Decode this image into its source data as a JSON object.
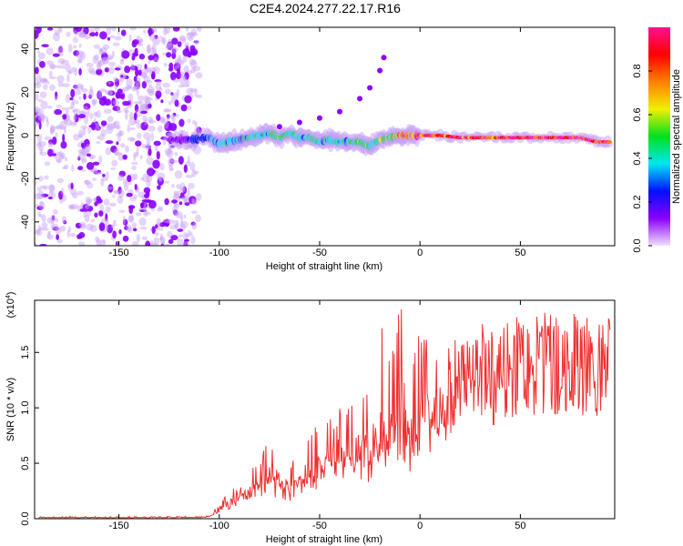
{
  "title": "C2E4.2024.277.22.17.R16",
  "chart_data": [
    {
      "type": "heatmap",
      "xlabel": "Height of straight line (km)",
      "ylabel": "Frequency (Hz)",
      "xlim": [
        -192,
        97
      ],
      "ylim": [
        -51,
        50
      ],
      "xticks": [
        -150,
        -100,
        -50,
        0,
        50
      ],
      "yticks": [
        40,
        20,
        0,
        -20,
        -40
      ],
      "colorbar": {
        "label": "Normalized spectral amplitude",
        "range": [
          0,
          1
        ],
        "ticks": [
          "0.0",
          "0.2",
          "0.4",
          "0.6",
          "0.8"
        ],
        "colors": [
          "#f0e0ff",
          "#8a00ff",
          "#0010ff",
          "#00e8f0",
          "#00e020",
          "#f0f000",
          "#ff8000",
          "#ff0000",
          "#ff1090"
        ]
      },
      "noise_region_x": [
        -192,
        -110
      ],
      "trace": {
        "x": [
          -125,
          -115,
          -105,
          -100,
          -95,
          -90,
          -85,
          -80,
          -75,
          -70,
          -65,
          -60,
          -55,
          -50,
          -45,
          -40,
          -35,
          -30,
          -25,
          -20,
          -15,
          -10,
          -5,
          0,
          10,
          20,
          30,
          40,
          50,
          60,
          70,
          80,
          88,
          95
        ],
        "freq": [
          -2,
          -2,
          -1,
          -4,
          -3,
          -2,
          -1,
          0,
          1,
          -1,
          1,
          -1,
          -1,
          -3,
          -2,
          -3,
          -3,
          -3,
          -5,
          -2,
          -1,
          0,
          0,
          0,
          0,
          -1,
          -1,
          -1,
          -1,
          -1,
          -1,
          -1,
          -3,
          -3
        ],
        "amplitude": [
          0.15,
          0.2,
          0.35,
          0.4,
          0.35,
          0.4,
          0.45,
          0.4,
          0.45,
          0.5,
          0.45,
          0.4,
          0.45,
          0.4,
          0.45,
          0.4,
          0.45,
          0.5,
          0.45,
          0.55,
          0.6,
          0.75,
          0.85,
          0.85,
          0.9,
          0.85,
          0.9,
          0.9,
          0.95,
          0.95,
          0.95,
          0.95,
          0.9,
          0.9
        ]
      },
      "secondary_trace": {
        "x": [
          -70,
          -60,
          -50,
          -40,
          -30,
          -25,
          -20,
          -18
        ],
        "freq": [
          4,
          6,
          8,
          11,
          17,
          22,
          30,
          36
        ]
      }
    },
    {
      "type": "line",
      "xlabel": "Height of straight line (km)",
      "ylabel": "SNR (10 * v/v)",
      "multiplier": "(x10",
      "multiplier_exp": "4",
      "multiplier_close": ")",
      "xlim": [
        -192,
        97
      ],
      "ylim": [
        0,
        1.97
      ],
      "xticks": [
        -150,
        -100,
        -50,
        0,
        50
      ],
      "yticks": [
        "0.0",
        "0.5",
        "1.0",
        "1.5"
      ],
      "line_color": "#f03030",
      "x": [
        -190,
        -185,
        -180,
        -175,
        -170,
        -165,
        -160,
        -155,
        -150,
        -145,
        -140,
        -135,
        -130,
        -125,
        -120,
        -115,
        -110,
        -105,
        -100,
        -95,
        -90,
        -85,
        -80,
        -75,
        -70,
        -65,
        -60,
        -55,
        -50,
        -45,
        -40,
        -35,
        -30,
        -25,
        -20,
        -15,
        -10,
        -5,
        0,
        5,
        10,
        15,
        20,
        25,
        30,
        35,
        40,
        45,
        50,
        55,
        60,
        65,
        70,
        75,
        80,
        85,
        90,
        95
      ],
      "mean": [
        0.01,
        0.01,
        0.01,
        0.01,
        0.01,
        0.01,
        0.01,
        0.01,
        0.01,
        0.01,
        0.01,
        0.01,
        0.01,
        0.01,
        0.01,
        0.01,
        0.01,
        0.02,
        0.1,
        0.15,
        0.2,
        0.25,
        0.3,
        0.35,
        0.3,
        0.25,
        0.35,
        0.4,
        0.45,
        0.5,
        0.55,
        0.5,
        0.55,
        0.6,
        0.7,
        0.7,
        0.8,
        0.6,
        0.9,
        1.1,
        1.2,
        1.4,
        1.5,
        1.65,
        1.75,
        1.7,
        1.6,
        1.8,
        1.82,
        1.83,
        1.83,
        1.82,
        1.82,
        1.81,
        1.8,
        1.8,
        1.8,
        1.79
      ],
      "peak": [
        0.02,
        0.02,
        0.02,
        0.02,
        0.02,
        0.02,
        0.02,
        0.02,
        0.02,
        0.02,
        0.02,
        0.02,
        0.02,
        0.02,
        0.02,
        0.02,
        0.02,
        0.03,
        0.15,
        0.25,
        0.3,
        0.45,
        0.55,
        0.75,
        0.65,
        0.5,
        0.6,
        0.8,
        0.9,
        0.9,
        1.0,
        1.1,
        1.0,
        1.3,
        1.85,
        1.4,
        1.97,
        1.5,
        1.7,
        1.6,
        1.45,
        1.6,
        1.7,
        1.8,
        1.85,
        1.85,
        1.88,
        1.88,
        1.87,
        1.87,
        1.86,
        1.86,
        1.85,
        1.85,
        1.84,
        1.84,
        1.83,
        1.82
      ]
    }
  ]
}
